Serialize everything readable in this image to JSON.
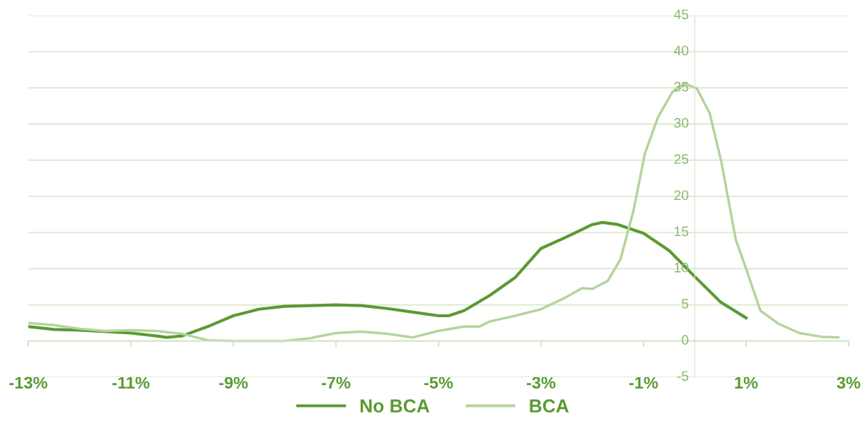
{
  "chart_data": {
    "type": "line",
    "xlim": [
      -13,
      3
    ],
    "ylim": [
      -5,
      45
    ],
    "xticks": [
      {
        "value": -13,
        "label": "-13%"
      },
      {
        "value": -11,
        "label": "-11%"
      },
      {
        "value": -9,
        "label": "-9%"
      },
      {
        "value": -7,
        "label": "-7%"
      },
      {
        "value": -5,
        "label": "-5%"
      },
      {
        "value": -3,
        "label": "-3%"
      },
      {
        "value": -1,
        "label": "-1%"
      },
      {
        "value": 1,
        "label": "1%"
      },
      {
        "value": 3,
        "label": "3%"
      }
    ],
    "yticks": [
      -5,
      0,
      5,
      10,
      15,
      20,
      25,
      30,
      35,
      40,
      45
    ],
    "grid": "y",
    "legend": "bottom",
    "marker": "none",
    "line_style": "solid",
    "series": [
      {
        "name": "No BCA",
        "color": "#5a9a33",
        "x": [
          -13,
          -12.5,
          -12,
          -11.5,
          -11,
          -10.5,
          -10.3,
          -10,
          -9.5,
          -9,
          -8.5,
          -8,
          -7.5,
          -7,
          -6.5,
          -6,
          -5.5,
          -5,
          -4.8,
          -4.5,
          -4,
          -3.5,
          -3,
          -2.5,
          -2,
          -1.8,
          -1.5,
          -1,
          -0.5,
          0,
          0.5,
          1
        ],
        "values": [
          2.0,
          1.6,
          1.5,
          1.3,
          1.1,
          0.7,
          0.5,
          0.7,
          2.0,
          3.5,
          4.4,
          4.8,
          4.9,
          5.0,
          4.9,
          4.5,
          4.0,
          3.5,
          3.5,
          4.2,
          6.3,
          8.8,
          12.8,
          14.4,
          16.1,
          16.4,
          16.1,
          14.9,
          12.5,
          8.9,
          5.4,
          3.2
        ]
      },
      {
        "name": "BCA",
        "color": "#b5d39e",
        "x": [
          -13,
          -12.5,
          -12,
          -11.5,
          -11,
          -10.5,
          -10,
          -9.5,
          -9,
          -8.5,
          -8,
          -7.5,
          -7,
          -6.5,
          -6,
          -5.5,
          -5,
          -4.5,
          -4.2,
          -4,
          -3.5,
          -3,
          -2.5,
          -2.2,
          -2,
          -1.7,
          -1.45,
          -1.2,
          -0.97,
          -0.72,
          -0.44,
          -0.19,
          0.04,
          0.29,
          0.52,
          0.8,
          1.0,
          1.28,
          1.63,
          2.04,
          2.46,
          2.8
        ],
        "values": [
          2.5,
          2.2,
          1.7,
          1.4,
          1.5,
          1.4,
          1.0,
          0.1,
          0,
          0,
          0,
          0.4,
          1.1,
          1.3,
          1.0,
          0.5,
          1.4,
          2.0,
          2.0,
          2.7,
          3.5,
          4.4,
          6.1,
          7.3,
          7.2,
          8.3,
          11.3,
          17.9,
          26,
          30.9,
          34.4,
          35.6,
          34.9,
          31.5,
          24.7,
          14,
          10,
          4.2,
          2.4,
          1.1,
          0.6,
          0.5
        ]
      }
    ]
  }
}
